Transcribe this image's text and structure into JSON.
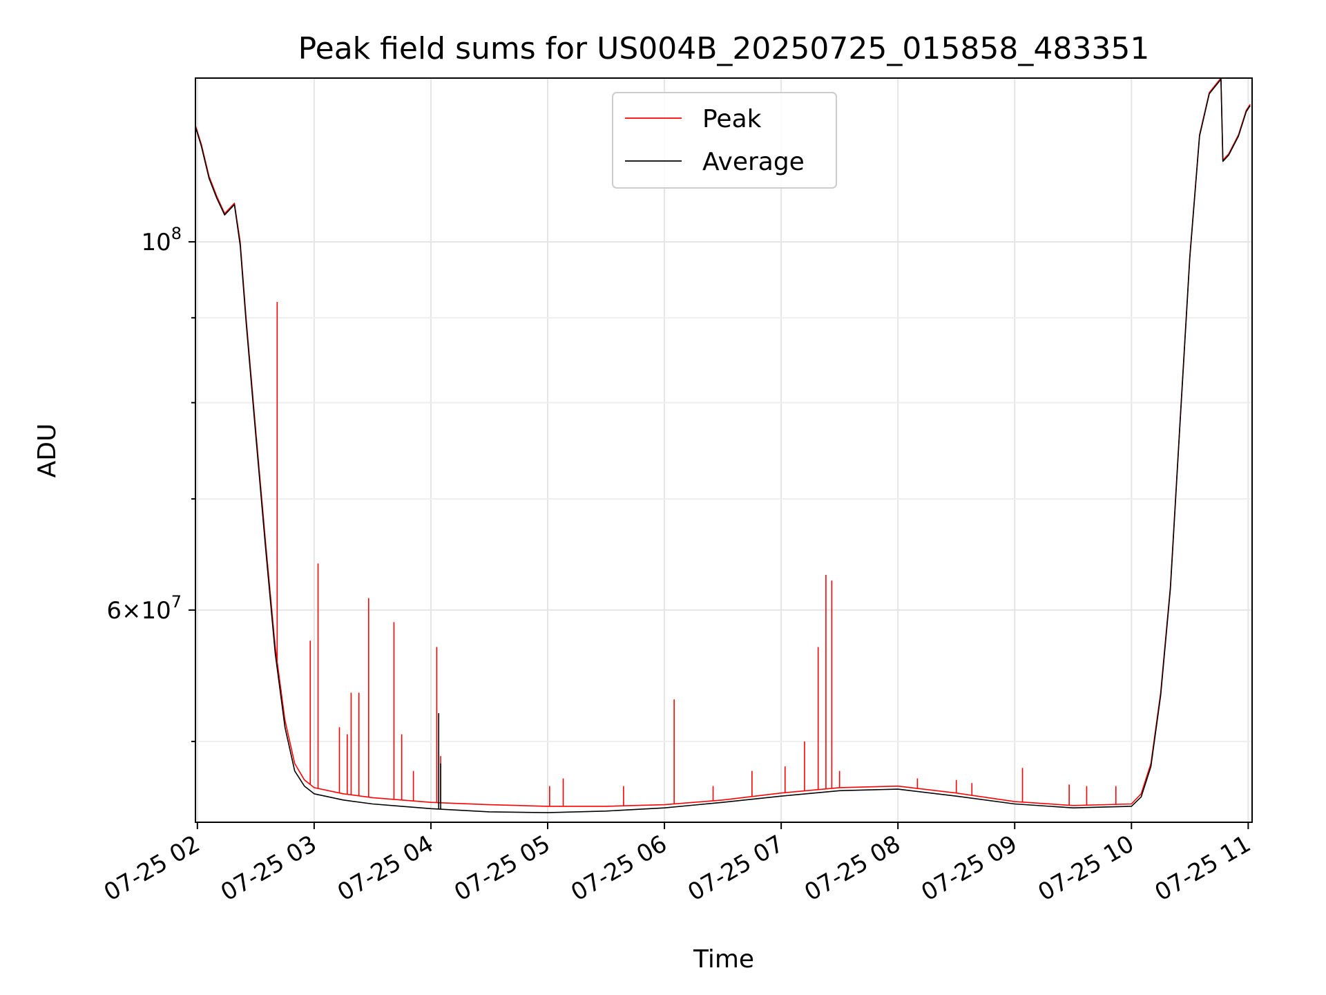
{
  "chart_data": {
    "type": "line",
    "title": "Peak field sums for US004B_20250725_015858_483351",
    "xlabel": "Time",
    "ylabel": "ADU",
    "y_scale": "log",
    "grid": true,
    "legend_position": "top-center",
    "xlim": [
      "07-25 01:59",
      "07-25 11:02"
    ],
    "ylim": [
      44700000,
      125500000
    ],
    "x_ticks": [
      {
        "t": "07-25 02:00",
        "label": "07-25 02"
      },
      {
        "t": "07-25 03:00",
        "label": "07-25 03"
      },
      {
        "t": "07-25 04:00",
        "label": "07-25 04"
      },
      {
        "t": "07-25 05:00",
        "label": "07-25 05"
      },
      {
        "t": "07-25 06:00",
        "label": "07-25 06"
      },
      {
        "t": "07-25 07:00",
        "label": "07-25 07"
      },
      {
        "t": "07-25 08:00",
        "label": "07-25 08"
      },
      {
        "t": "07-25 09:00",
        "label": "07-25 09"
      },
      {
        "t": "07-25 10:00",
        "label": "07-25 10"
      },
      {
        "t": "07-25 11:00",
        "label": "07-25 11"
      }
    ],
    "y_major_ticks": [
      {
        "value": 60000000,
        "base": "6",
        "exp": "7"
      },
      {
        "value": 100000000,
        "base": "10",
        "exp": "8"
      }
    ],
    "y_minor_ticks": [
      50000000,
      70000000,
      80000000,
      90000000
    ],
    "series": [
      {
        "name": "Peak",
        "color": "#ff0000",
        "baseline_points": [
          [
            "07-25 01:59",
            117500000
          ],
          [
            "07-25 02:02",
            114500000
          ],
          [
            "07-25 02:06",
            109500000
          ],
          [
            "07-25 02:10",
            106500000
          ],
          [
            "07-25 02:14",
            104000000
          ],
          [
            "07-25 02:19",
            105500000
          ],
          [
            "07-25 02:22",
            100000000
          ],
          [
            "07-25 02:25",
            90000000
          ],
          [
            "07-25 02:30",
            77000000
          ],
          [
            "07-25 02:35",
            66000000
          ],
          [
            "07-25 02:40",
            57000000
          ],
          [
            "07-25 02:45",
            51500000
          ],
          [
            "07-25 02:50",
            48500000
          ],
          [
            "07-25 02:55",
            47400000
          ],
          [
            "07-25 03:00",
            46900000
          ],
          [
            "07-25 03:15",
            46500000
          ],
          [
            "07-25 03:30",
            46250000
          ],
          [
            "07-25 03:45",
            46100000
          ],
          [
            "07-25 04:00",
            45950000
          ],
          [
            "07-25 04:30",
            45800000
          ],
          [
            "07-25 05:00",
            45700000
          ],
          [
            "07-25 05:30",
            45700000
          ],
          [
            "07-25 06:00",
            45800000
          ],
          [
            "07-25 06:30",
            46100000
          ],
          [
            "07-25 07:00",
            46550000
          ],
          [
            "07-25 07:30",
            46900000
          ],
          [
            "07-25 08:00",
            47000000
          ],
          [
            "07-25 08:30",
            46550000
          ],
          [
            "07-25 09:00",
            46000000
          ],
          [
            "07-25 09:30",
            45750000
          ],
          [
            "07-25 10:00",
            45850000
          ],
          [
            "07-25 10:05",
            46500000
          ],
          [
            "07-25 10:10",
            48500000
          ],
          [
            "07-25 10:15",
            53500000
          ],
          [
            "07-25 10:20",
            62000000
          ],
          [
            "07-25 10:25",
            78000000
          ],
          [
            "07-25 10:30",
            98000000
          ],
          [
            "07-25 10:35",
            116000000
          ],
          [
            "07-25 10:40",
            123000000
          ],
          [
            "07-25 10:46",
            125500000
          ],
          [
            "07-25 10:47",
            112000000
          ],
          [
            "07-25 10:50",
            113000000
          ],
          [
            "07-25 10:55",
            116000000
          ],
          [
            "07-25 10:59",
            120000000
          ],
          [
            "07-25 11:01",
            121000000
          ]
        ],
        "spikes": [
          [
            "07-25 02:41",
            92000000
          ],
          [
            "07-25 02:43",
            53500000
          ],
          [
            "07-25 02:58",
            57500000
          ],
          [
            "07-25 03:02",
            64000000
          ],
          [
            "07-25 03:13",
            51000000
          ],
          [
            "07-25 03:17",
            50500000
          ],
          [
            "07-25 03:19",
            53500000
          ],
          [
            "07-25 03:23",
            53500000
          ],
          [
            "07-25 03:28",
            61000000
          ],
          [
            "07-25 03:41",
            59000000
          ],
          [
            "07-25 03:45",
            50500000
          ],
          [
            "07-25 03:51",
            48000000
          ],
          [
            "07-25 04:03",
            57000000
          ],
          [
            "07-25 04:05",
            49000000
          ],
          [
            "07-25 05:01",
            47000000
          ],
          [
            "07-25 05:08",
            47500000
          ],
          [
            "07-25 05:39",
            47000000
          ],
          [
            "07-25 06:05",
            53000000
          ],
          [
            "07-25 06:25",
            47000000
          ],
          [
            "07-25 06:45",
            48000000
          ],
          [
            "07-25 07:02",
            48300000
          ],
          [
            "07-25 07:12",
            50000000
          ],
          [
            "07-25 07:19",
            57000000
          ],
          [
            "07-25 07:23",
            63000000
          ],
          [
            "07-25 07:26",
            62500000
          ],
          [
            "07-25 07:30",
            48000000
          ],
          [
            "07-25 08:10",
            47500000
          ],
          [
            "07-25 08:30",
            47400000
          ],
          [
            "07-25 08:38",
            47200000
          ],
          [
            "07-25 09:04",
            48200000
          ],
          [
            "07-25 09:28",
            47100000
          ],
          [
            "07-25 09:37",
            47000000
          ],
          [
            "07-25 09:52",
            47000000
          ]
        ]
      },
      {
        "name": "Average",
        "color": "#000000",
        "baseline_points": [
          [
            "07-25 01:59",
            117300000
          ],
          [
            "07-25 02:02",
            114200000
          ],
          [
            "07-25 02:06",
            109200000
          ],
          [
            "07-25 02:10",
            106200000
          ],
          [
            "07-25 02:14",
            103800000
          ],
          [
            "07-25 02:19",
            105300000
          ],
          [
            "07-25 02:22",
            99500000
          ],
          [
            "07-25 02:25",
            89500000
          ],
          [
            "07-25 02:30",
            76500000
          ],
          [
            "07-25 02:35",
            65500000
          ],
          [
            "07-25 02:40",
            56500000
          ],
          [
            "07-25 02:45",
            51000000
          ],
          [
            "07-25 02:50",
            48000000
          ],
          [
            "07-25 02:55",
            47000000
          ],
          [
            "07-25 03:00",
            46500000
          ],
          [
            "07-25 03:15",
            46100000
          ],
          [
            "07-25 03:30",
            45850000
          ],
          [
            "07-25 03:45",
            45700000
          ],
          [
            "07-25 04:00",
            45550000
          ],
          [
            "07-25 04:30",
            45350000
          ],
          [
            "07-25 05:00",
            45300000
          ],
          [
            "07-25 05:30",
            45400000
          ],
          [
            "07-25 06:00",
            45600000
          ],
          [
            "07-25 06:30",
            45950000
          ],
          [
            "07-25 07:00",
            46350000
          ],
          [
            "07-25 07:30",
            46700000
          ],
          [
            "07-25 08:00",
            46800000
          ],
          [
            "07-25 08:30",
            46350000
          ],
          [
            "07-25 09:00",
            45850000
          ],
          [
            "07-25 09:30",
            45600000
          ],
          [
            "07-25 10:00",
            45700000
          ],
          [
            "07-25 10:05",
            46300000
          ],
          [
            "07-25 10:10",
            48300000
          ],
          [
            "07-25 10:15",
            53300000
          ],
          [
            "07-25 10:20",
            61800000
          ],
          [
            "07-25 10:25",
            77800000
          ],
          [
            "07-25 10:30",
            97800000
          ],
          [
            "07-25 10:35",
            115800000
          ],
          [
            "07-25 10:40",
            122800000
          ],
          [
            "07-25 10:46",
            125300000
          ],
          [
            "07-25 10:47",
            111800000
          ],
          [
            "07-25 10:50",
            112800000
          ],
          [
            "07-25 10:55",
            115800000
          ],
          [
            "07-25 10:59",
            119800000
          ],
          [
            "07-25 11:01",
            120800000
          ]
        ],
        "spikes": [
          [
            "07-25 04:04",
            52000000
          ],
          [
            "07-25 04:05",
            48500000
          ]
        ]
      }
    ]
  }
}
